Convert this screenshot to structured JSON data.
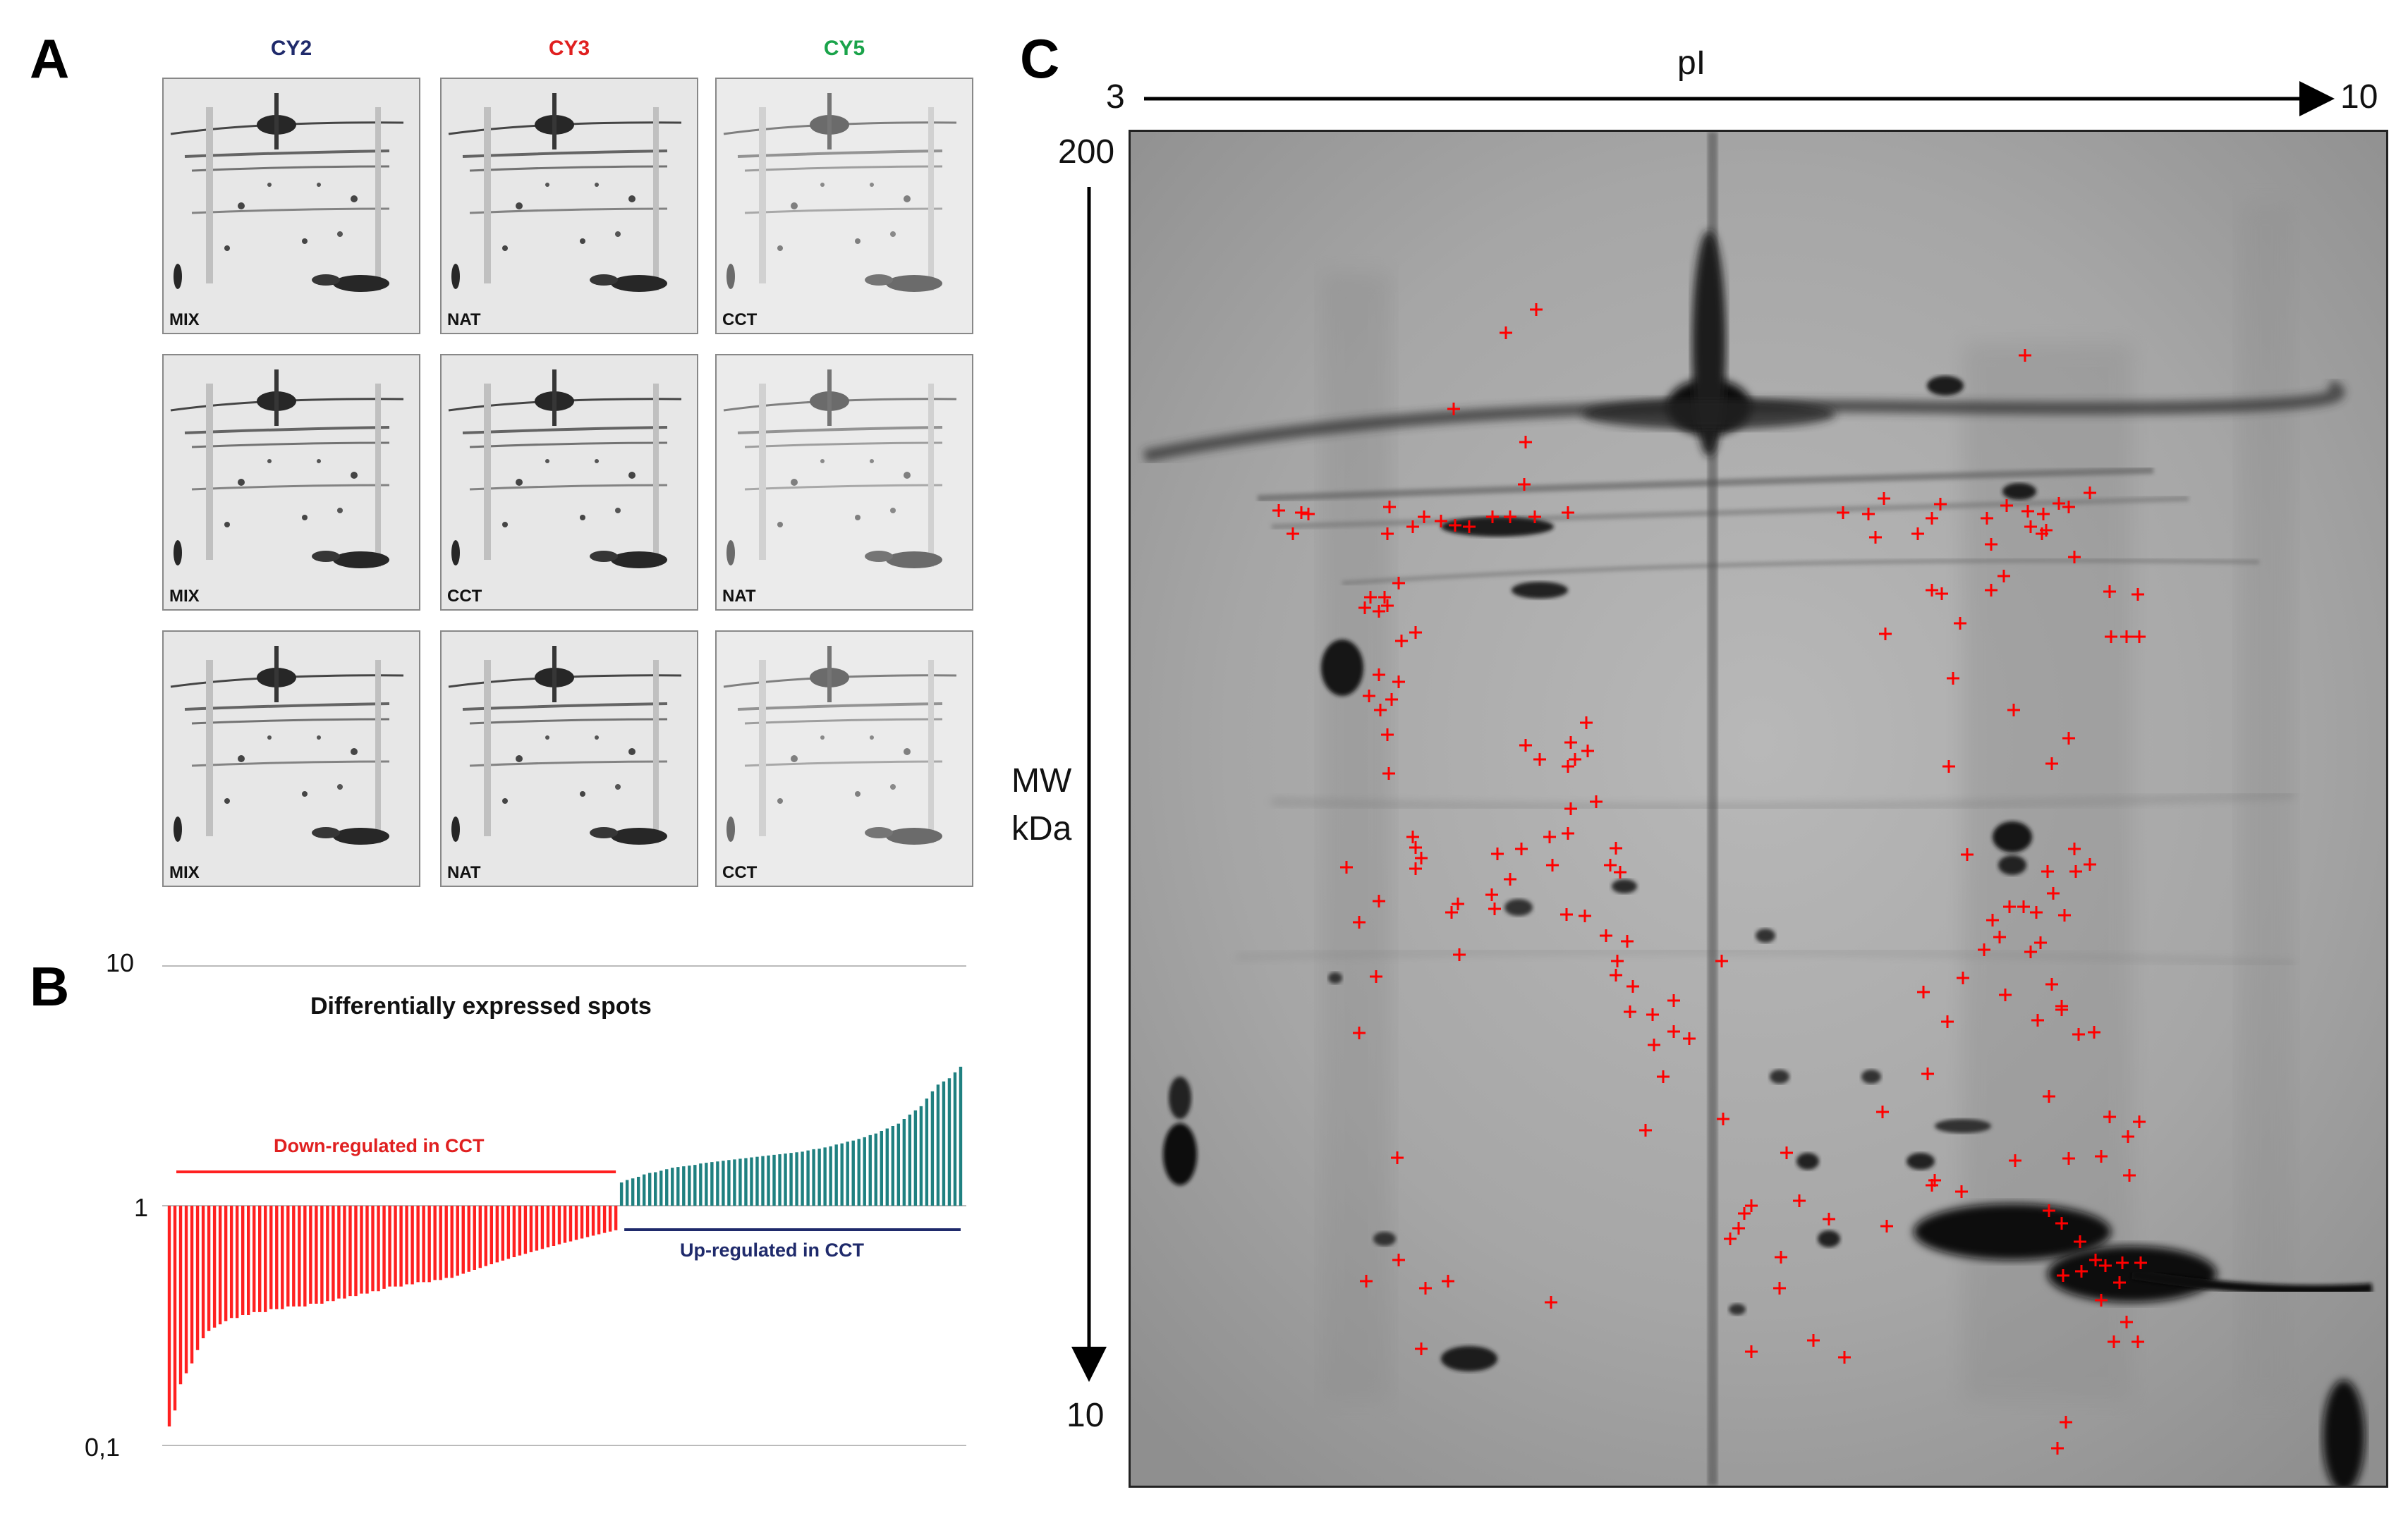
{
  "panels": {
    "a": {
      "letter": "A",
      "channels": [
        {
          "name": "CY2",
          "color": "#1f2a6b"
        },
        {
          "name": "CY3",
          "color": "#e02020"
        },
        {
          "name": "CY5",
          "color": "#1aa34a"
        }
      ],
      "rows": [
        [
          "MIX",
          "NAT",
          "CCT"
        ],
        [
          "MIX",
          "CCT",
          "NAT"
        ],
        [
          "MIX",
          "NAT",
          "CCT"
        ]
      ]
    },
    "b": {
      "letter": "B",
      "title": "Differentially expressed spots",
      "down_label": "Down-regulated in CCT",
      "up_label": "Up-regulated in CCT",
      "y_ticks": [
        "10",
        "1",
        "0,1"
      ],
      "colors": {
        "down": "#ff2020",
        "up": "#1f8080",
        "down_text": "#e02020",
        "up_text": "#1f2a6b"
      }
    },
    "c": {
      "letter": "C",
      "pi_label": "pI",
      "pi_left": "3",
      "pi_right": "10",
      "mw_top": "200",
      "mw_bottom": "10",
      "mw_axis_label_1": "MW",
      "mw_axis_label_2": "kDa",
      "marker_color": "#ff0000"
    }
  },
  "chart_data": {
    "type": "bar",
    "title": "Differentially expressed spots",
    "yscale": "log",
    "ylim": [
      0.1,
      10
    ],
    "y_tick_labels": [
      "0,1",
      "1",
      "10"
    ],
    "series": [
      {
        "name": "Down-regulated in CCT",
        "values": [
          0.12,
          0.14,
          0.18,
          0.2,
          0.22,
          0.25,
          0.28,
          0.3,
          0.31,
          0.32,
          0.33,
          0.34,
          0.34,
          0.35,
          0.35,
          0.36,
          0.36,
          0.36,
          0.37,
          0.37,
          0.37,
          0.38,
          0.38,
          0.38,
          0.38,
          0.39,
          0.39,
          0.39,
          0.4,
          0.4,
          0.41,
          0.41,
          0.42,
          0.42,
          0.43,
          0.43,
          0.44,
          0.44,
          0.45,
          0.46,
          0.46,
          0.46,
          0.47,
          0.47,
          0.48,
          0.48,
          0.48,
          0.49,
          0.49,
          0.5,
          0.5,
          0.51,
          0.52,
          0.53,
          0.54,
          0.55,
          0.56,
          0.57,
          0.58,
          0.59,
          0.6,
          0.61,
          0.62,
          0.63,
          0.64,
          0.65,
          0.66,
          0.67,
          0.68,
          0.69,
          0.7,
          0.71,
          0.72,
          0.73,
          0.74,
          0.75,
          0.76,
          0.77,
          0.78,
          0.79
        ]
      },
      {
        "name": "Up-regulated in CCT",
        "values": [
          1.25,
          1.28,
          1.3,
          1.32,
          1.35,
          1.37,
          1.38,
          1.4,
          1.42,
          1.44,
          1.45,
          1.46,
          1.47,
          1.48,
          1.5,
          1.51,
          1.52,
          1.53,
          1.54,
          1.55,
          1.56,
          1.57,
          1.58,
          1.59,
          1.6,
          1.61,
          1.62,
          1.63,
          1.64,
          1.65,
          1.66,
          1.67,
          1.68,
          1.7,
          1.72,
          1.73,
          1.75,
          1.77,
          1.8,
          1.82,
          1.85,
          1.87,
          1.9,
          1.93,
          1.97,
          2.0,
          2.05,
          2.1,
          2.15,
          2.2,
          2.3,
          2.4,
          2.5,
          2.6,
          2.8,
          3.0,
          3.2,
          3.3,
          3.4,
          3.6,
          3.8
        ]
      }
    ]
  }
}
